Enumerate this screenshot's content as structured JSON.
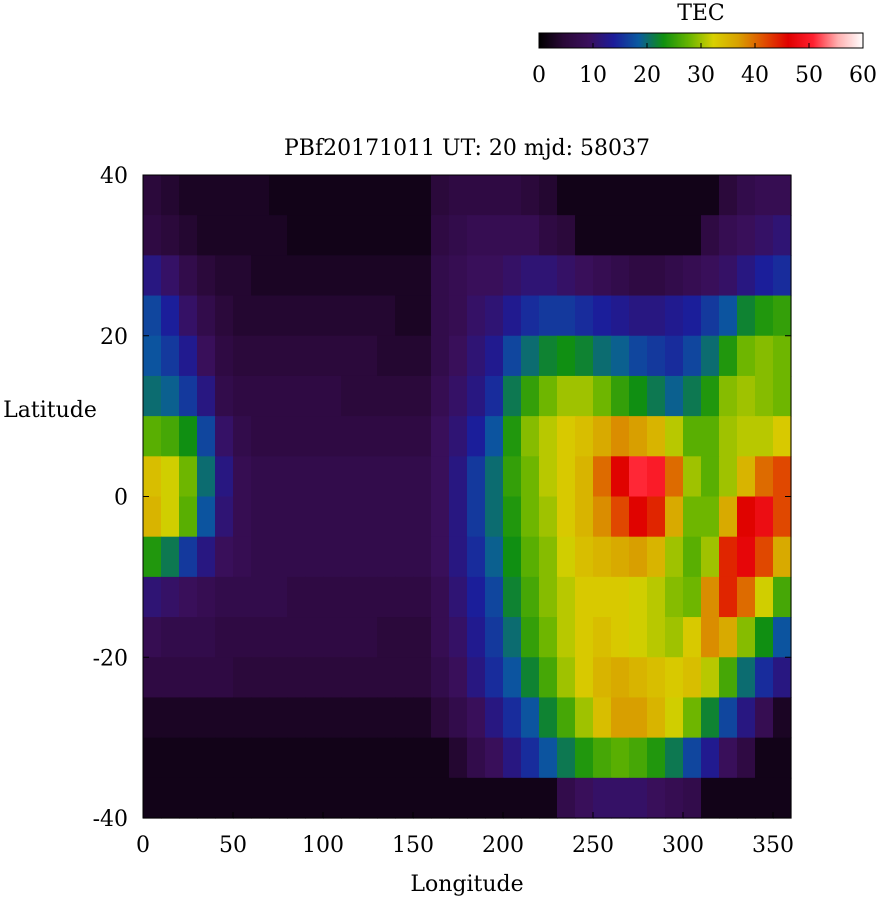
{
  "chart_data": {
    "type": "heatmap",
    "title": "PBf20171011  UT: 20  mjd: 58037",
    "xlabel": "Longitude",
    "ylabel": "Latitude",
    "xlim": [
      0,
      360
    ],
    "ylim": [
      -40,
      40
    ],
    "x_ticks": [
      "0",
      "50",
      "100",
      "150",
      "200",
      "250",
      "300",
      "350"
    ],
    "y_ticks": [
      "40",
      "20",
      "0",
      "-20",
      "-40"
    ],
    "colorbar": {
      "label": "TEC",
      "range": [
        0,
        60
      ],
      "ticks": [
        "0",
        "10",
        "20",
        "30",
        "40",
        "50",
        "60"
      ],
      "palette": [
        "#000000",
        "#2a0838",
        "#3a0f5c",
        "#1c1c9a",
        "#0a5aa0",
        "#109010",
        "#66b400",
        "#d8d000",
        "#d8a000",
        "#e05000",
        "#e00000",
        "#ff2030",
        "#ffb0b0",
        "#ffffff"
      ]
    },
    "grid": {
      "lon_step": 10,
      "lat_step": 5
    },
    "lon": [
      5,
      15,
      25,
      35,
      45,
      55,
      65,
      75,
      85,
      95,
      105,
      115,
      125,
      135,
      145,
      155,
      165,
      175,
      185,
      195,
      205,
      215,
      225,
      235,
      245,
      255,
      265,
      275,
      285,
      295,
      305,
      315,
      325,
      335,
      345,
      355
    ],
    "lat": [
      37.5,
      32.5,
      27.5,
      22.5,
      17.5,
      12.5,
      7.5,
      2.5,
      -2.5,
      -7.5,
      -12.5,
      -17.5,
      -22.5,
      -27.5,
      -32.5,
      -37.5
    ],
    "values": [
      [
        5,
        4,
        3,
        3,
        3,
        3,
        3,
        2,
        2,
        2,
        2,
        2,
        2,
        2,
        2,
        2,
        5,
        6,
        6,
        6,
        6,
        5,
        4,
        2,
        2,
        2,
        2,
        2,
        2,
        2,
        2,
        2,
        5,
        7,
        8,
        8
      ],
      [
        6,
        5,
        4,
        3,
        3,
        3,
        3,
        3,
        2,
        2,
        2,
        2,
        2,
        2,
        2,
        2,
        6,
        7,
        8,
        8,
        8,
        8,
        6,
        5,
        2,
        2,
        2,
        2,
        2,
        2,
        2,
        6,
        8,
        9,
        10,
        11
      ],
      [
        12,
        10,
        7,
        5,
        4,
        4,
        3,
        3,
        3,
        3,
        3,
        3,
        3,
        3,
        3,
        3,
        7,
        8,
        9,
        9,
        10,
        11,
        11,
        10,
        9,
        8,
        7,
        6,
        6,
        7,
        8,
        9,
        10,
        12,
        14,
        15
      ],
      [
        17,
        14,
        10,
        7,
        5,
        4,
        4,
        4,
        4,
        4,
        4,
        4,
        4,
        4,
        3,
        3,
        7,
        8,
        10,
        11,
        13,
        15,
        16,
        16,
        15,
        14,
        13,
        12,
        12,
        13,
        14,
        16,
        18,
        22,
        24,
        25
      ],
      [
        18,
        16,
        13,
        9,
        6,
        5,
        5,
        5,
        5,
        5,
        5,
        5,
        5,
        4,
        4,
        4,
        7,
        9,
        11,
        13,
        17,
        20,
        22,
        23,
        22,
        20,
        19,
        17,
        16,
        15,
        17,
        20,
        24,
        28,
        29,
        28
      ],
      [
        20,
        19,
        16,
        12,
        7,
        6,
        6,
        6,
        6,
        6,
        6,
        5,
        5,
        5,
        5,
        5,
        8,
        10,
        12,
        15,
        21,
        25,
        28,
        30,
        30,
        28,
        25,
        23,
        21,
        19,
        21,
        24,
        29,
        30,
        29,
        28
      ],
      [
        27,
        26,
        23,
        17,
        10,
        7,
        6,
        6,
        6,
        6,
        6,
        6,
        6,
        6,
        6,
        6,
        9,
        11,
        14,
        18,
        24,
        29,
        31,
        33,
        34,
        36,
        38,
        37,
        35,
        31,
        27,
        27,
        30,
        31,
        31,
        33
      ],
      [
        34,
        32,
        28,
        20,
        12,
        8,
        7,
        7,
        7,
        7,
        7,
        7,
        7,
        7,
        7,
        7,
        9,
        12,
        16,
        20,
        25,
        28,
        31,
        33,
        35,
        40,
        46,
        51,
        50,
        40,
        30,
        27,
        30,
        35,
        40,
        42
      ],
      [
        35,
        32,
        27,
        18,
        11,
        8,
        7,
        7,
        7,
        7,
        7,
        7,
        7,
        7,
        7,
        7,
        9,
        12,
        16,
        20,
        24,
        28,
        30,
        33,
        35,
        38,
        42,
        46,
        44,
        36,
        28,
        28,
        36,
        46,
        48,
        42
      ],
      [
        24,
        21,
        16,
        12,
        9,
        8,
        7,
        7,
        7,
        7,
        7,
        7,
        7,
        7,
        7,
        7,
        9,
        12,
        15,
        19,
        23,
        27,
        29,
        32,
        34,
        35,
        36,
        37,
        35,
        30,
        27,
        30,
        44,
        47,
        42,
        36
      ],
      [
        11,
        10,
        9,
        8,
        7,
        7,
        7,
        7,
        6,
        6,
        6,
        6,
        6,
        6,
        6,
        6,
        8,
        11,
        14,
        17,
        22,
        26,
        29,
        31,
        33,
        33,
        33,
        32,
        31,
        29,
        28,
        38,
        44,
        40,
        32,
        26
      ],
      [
        8,
        7,
        7,
        7,
        6,
        6,
        6,
        6,
        6,
        6,
        6,
        6,
        6,
        5,
        5,
        5,
        8,
        10,
        13,
        16,
        20,
        25,
        28,
        31,
        33,
        34,
        33,
        32,
        31,
        30,
        33,
        38,
        36,
        29,
        23,
        18
      ],
      [
        6,
        6,
        6,
        6,
        6,
        5,
        5,
        5,
        5,
        5,
        5,
        5,
        5,
        5,
        5,
        5,
        7,
        9,
        12,
        15,
        18,
        22,
        26,
        30,
        33,
        35,
        36,
        35,
        34,
        33,
        34,
        31,
        26,
        20,
        15,
        12
      ],
      [
        3,
        3,
        3,
        3,
        3,
        3,
        3,
        3,
        3,
        3,
        3,
        3,
        3,
        3,
        3,
        3,
        5,
        7,
        9,
        12,
        15,
        18,
        22,
        26,
        30,
        34,
        37,
        37,
        35,
        32,
        28,
        22,
        17,
        12,
        8,
        3
      ],
      [
        2,
        2,
        2,
        2,
        2,
        2,
        2,
        2,
        2,
        2,
        2,
        2,
        2,
        2,
        2,
        2,
        2,
        4,
        7,
        9,
        12,
        15,
        18,
        21,
        24,
        26,
        27,
        26,
        24,
        21,
        17,
        13,
        9,
        6,
        2,
        2
      ],
      [
        2,
        2,
        2,
        2,
        2,
        2,
        2,
        2,
        2,
        2,
        2,
        2,
        2,
        2,
        2,
        2,
        2,
        2,
        2,
        2,
        2,
        2,
        2,
        7,
        9,
        10,
        10,
        10,
        9,
        8,
        7,
        2,
        2,
        2,
        2,
        2
      ]
    ]
  }
}
